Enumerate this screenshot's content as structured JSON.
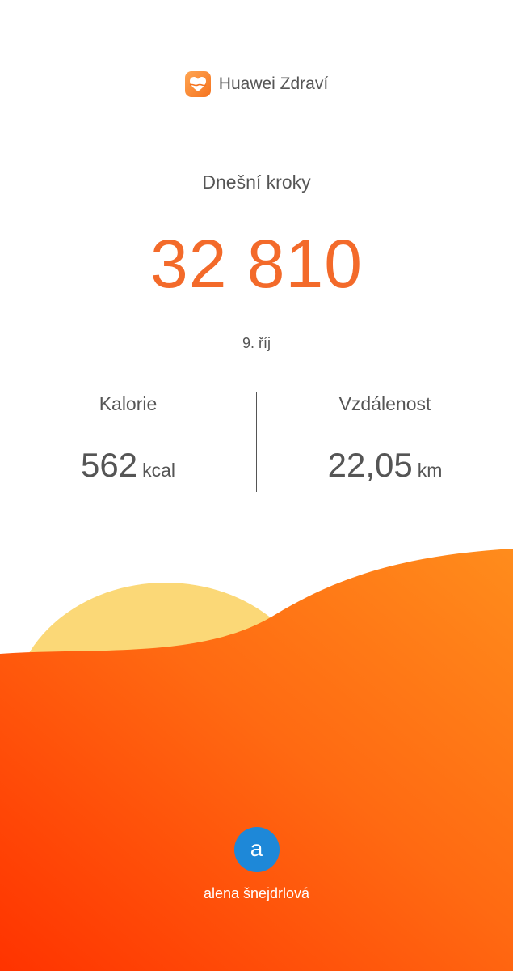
{
  "app": {
    "name": "Huawei Zdraví",
    "icon": "heart-icon"
  },
  "steps": {
    "label": "Dnešní kroky",
    "value": "32 810"
  },
  "date": "9. říj",
  "calories": {
    "label": "Kalorie",
    "value": "562",
    "unit": "kcal"
  },
  "distance": {
    "label": "Vzdálenost",
    "value": "22,05",
    "unit": "km"
  },
  "user": {
    "initial": "a",
    "name": "alena šnejdrlová"
  },
  "colors": {
    "accent": "#f36a2a",
    "avatar": "#1e88d8",
    "sun": "#fbd877",
    "wave_light": "#ff8a1a",
    "wave_dark": "#ff3300"
  }
}
